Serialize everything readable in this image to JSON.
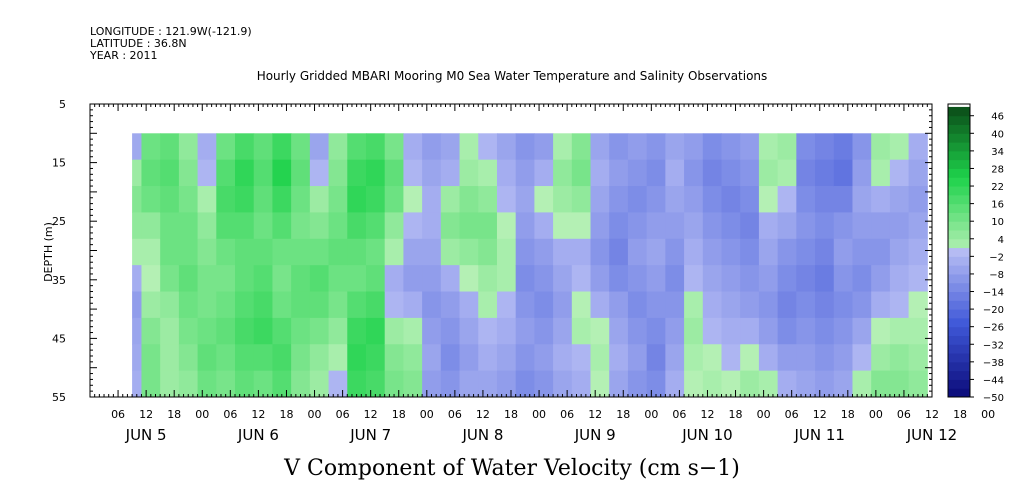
{
  "header": {
    "longitude": "LONGITUDE : 121.9W(-121.9)",
    "latitude": "LATITUDE : 36.8N",
    "year": "YEAR : 2011",
    "title": "Hourly Gridded MBARI Mooring M0 Sea Water Temperature and Salinity Observations"
  },
  "chart_data": {
    "type": "heatmap",
    "title": "Hourly Gridded MBARI Mooring M0 Sea Water Temperature and Salinity Observations",
    "caption": "V Component of Water Velocity (cm s−1)",
    "ylabel": "DEPTH (m)",
    "ylim": [
      5,
      55
    ],
    "y_inverted": true,
    "y_ticks": [
      5,
      15,
      25,
      35,
      45,
      55
    ],
    "data_depth_range": [
      10,
      55
    ],
    "x_unit": "hours since Jun 4 2011 00:00",
    "xlim": [
      0,
      180
    ],
    "data_time_range": [
      9,
      177
    ],
    "x_hour_ticks": [
      "06",
      "12",
      "18",
      "00",
      "06",
      "12",
      "18",
      "00",
      "06",
      "12",
      "18",
      "00",
      "06",
      "12",
      "18",
      "00",
      "06",
      "12",
      "18",
      "00",
      "06",
      "12",
      "18",
      "00",
      "06",
      "12",
      "18",
      "00",
      "06",
      "12",
      "18",
      "00"
    ],
    "x_date_labels": [
      "JUN  5",
      "JUN  6",
      "JUN  7",
      "JUN  8",
      "JUN  9",
      "JUN 10",
      "JUN 11",
      "JUN 12"
    ],
    "colorbar": {
      "levels": [
        46,
        40,
        34,
        28,
        22,
        16,
        10,
        4,
        -2,
        -8,
        -14,
        -20,
        -26,
        -32,
        -38,
        -44,
        -50
      ],
      "range": [
        -50,
        50
      ],
      "step": 3,
      "colors": {
        "neg_dark": "#0a0a78",
        "neg_mid": "#3f58d8",
        "neg_light": "#b7bdf4",
        "pos_light": "#b4f0b4",
        "pos_mid": "#1ed24b",
        "pos_dark": "#0a4616"
      }
    },
    "columns": [
      {
        "x": 9,
        "profile": [
          -5,
          4,
          8,
          6,
          2,
          -4,
          -8,
          -6,
          -5,
          -4
        ]
      },
      {
        "x": 13,
        "profile": [
          12,
          14,
          12,
          6,
          2,
          0,
          4,
          8,
          10,
          10
        ]
      },
      {
        "x": 17,
        "profile": [
          14,
          16,
          14,
          12,
          12,
          10,
          6,
          4,
          4,
          4
        ]
      },
      {
        "x": 21,
        "profile": [
          6,
          8,
          10,
          12,
          12,
          14,
          12,
          10,
          8,
          6
        ]
      },
      {
        "x": 25,
        "profile": [
          -4,
          -2,
          2,
          6,
          8,
          10,
          10,
          12,
          14,
          12
        ]
      },
      {
        "x": 29,
        "profile": [
          12,
          16,
          18,
          16,
          12,
          10,
          12,
          14,
          12,
          10
        ]
      },
      {
        "x": 33,
        "profile": [
          18,
          22,
          20,
          16,
          14,
          14,
          16,
          18,
          16,
          14
        ]
      },
      {
        "x": 37,
        "profile": [
          14,
          16,
          14,
          12,
          14,
          16,
          18,
          20,
          16,
          12
        ]
      },
      {
        "x": 41,
        "profile": [
          20,
          24,
          20,
          16,
          12,
          10,
          12,
          16,
          18,
          16
        ]
      },
      {
        "x": 45,
        "profile": [
          12,
          14,
          12,
          10,
          12,
          14,
          14,
          12,
          10,
          8
        ]
      },
      {
        "x": 49,
        "profile": [
          -6,
          -2,
          4,
          8,
          12,
          16,
          14,
          10,
          6,
          4
        ]
      },
      {
        "x": 53,
        "profile": [
          6,
          8,
          10,
          12,
          14,
          12,
          10,
          6,
          2,
          -2
        ]
      },
      {
        "x": 57,
        "profile": [
          16,
          20,
          22,
          18,
          14,
          12,
          16,
          20,
          22,
          20
        ]
      },
      {
        "x": 61,
        "profile": [
          18,
          22,
          20,
          16,
          12,
          14,
          18,
          22,
          20,
          18
        ]
      },
      {
        "x": 65,
        "profile": [
          10,
          14,
          12,
          6,
          2,
          -4,
          -2,
          4,
          8,
          10
        ]
      },
      {
        "x": 69,
        "profile": [
          -4,
          -2,
          0,
          -2,
          -6,
          -8,
          -4,
          2,
          6,
          8
        ]
      },
      {
        "x": 73,
        "profile": [
          -8,
          -6,
          -4,
          -4,
          -6,
          -8,
          -10,
          -8,
          -6,
          -8
        ]
      },
      {
        "x": 77,
        "profile": [
          -6,
          -4,
          4,
          8,
          4,
          -4,
          -8,
          -10,
          -12,
          -10
        ]
      },
      {
        "x": 81,
        "profile": [
          2,
          4,
          8,
          10,
          6,
          0,
          -4,
          -6,
          -8,
          -6
        ]
      },
      {
        "x": 85,
        "profile": [
          -2,
          2,
          6,
          10,
          8,
          4,
          2,
          -2,
          -4,
          -6
        ]
      },
      {
        "x": 89,
        "profile": [
          -6,
          -4,
          -2,
          0,
          2,
          2,
          -2,
          -4,
          -6,
          -8
        ]
      },
      {
        "x": 93,
        "profile": [
          -10,
          -8,
          -6,
          -8,
          -10,
          -12,
          -10,
          -8,
          -10,
          -12
        ]
      },
      {
        "x": 97,
        "profile": [
          -8,
          -4,
          0,
          -4,
          -8,
          -10,
          -12,
          -10,
          -8,
          -10
        ]
      },
      {
        "x": 101,
        "profile": [
          2,
          6,
          4,
          0,
          -4,
          -6,
          -8,
          -6,
          -4,
          -6
        ]
      },
      {
        "x": 105,
        "profile": [
          8,
          10,
          6,
          0,
          -4,
          -2,
          0,
          2,
          -2,
          -4
        ]
      },
      {
        "x": 109,
        "profile": [
          -6,
          -4,
          -6,
          -8,
          -10,
          -8,
          -4,
          0,
          2,
          0
        ]
      },
      {
        "x": 113,
        "profile": [
          -10,
          -8,
          -10,
          -12,
          -14,
          -12,
          -8,
          -6,
          -4,
          -6
        ]
      },
      {
        "x": 117,
        "profile": [
          -8,
          -10,
          -12,
          -10,
          -8,
          -10,
          -12,
          -10,
          -8,
          -10
        ]
      },
      {
        "x": 121,
        "profile": [
          -10,
          -12,
          -10,
          -8,
          -6,
          -8,
          -10,
          -12,
          -14,
          -12
        ]
      },
      {
        "x": 125,
        "profile": [
          -6,
          -4,
          -6,
          -8,
          -10,
          -12,
          -10,
          -8,
          -6,
          -4
        ]
      },
      {
        "x": 129,
        "profile": [
          -8,
          -10,
          -8,
          -6,
          -4,
          -2,
          2,
          4,
          2,
          0
        ]
      },
      {
        "x": 133,
        "profile": [
          -12,
          -14,
          -12,
          -10,
          -8,
          -6,
          -4,
          -2,
          0,
          2
        ]
      },
      {
        "x": 137,
        "profile": [
          -10,
          -12,
          -14,
          -12,
          -10,
          -8,
          -6,
          -4,
          -2,
          0
        ]
      },
      {
        "x": 141,
        "profile": [
          -8,
          -10,
          -12,
          -14,
          -12,
          -10,
          -8,
          -4,
          0,
          4
        ]
      },
      {
        "x": 145,
        "profile": [
          2,
          4,
          0,
          -4,
          -6,
          -8,
          -10,
          -8,
          -4,
          2
        ]
      },
      {
        "x": 149,
        "profile": [
          4,
          2,
          -2,
          -6,
          -10,
          -12,
          -14,
          -12,
          -8,
          -4
        ]
      },
      {
        "x": 153,
        "profile": [
          -12,
          -14,
          -12,
          -10,
          -12,
          -14,
          -12,
          -10,
          -8,
          -6
        ]
      },
      {
        "x": 157,
        "profile": [
          -14,
          -16,
          -14,
          -12,
          -14,
          -16,
          -14,
          -12,
          -10,
          -8
        ]
      },
      {
        "x": 161,
        "profile": [
          -16,
          -18,
          -14,
          -10,
          -8,
          -10,
          -12,
          -10,
          -8,
          -6
        ]
      },
      {
        "x": 165,
        "profile": [
          -10,
          -8,
          -6,
          -8,
          -10,
          -12,
          -10,
          -6,
          -2,
          2
        ]
      },
      {
        "x": 169,
        "profile": [
          4,
          2,
          -4,
          -8,
          -10,
          -8,
          -4,
          0,
          4,
          8
        ]
      },
      {
        "x": 173,
        "profile": [
          2,
          -2,
          -6,
          -8,
          -6,
          -4,
          -2,
          2,
          6,
          8
        ]
      },
      {
        "x": 177,
        "profile": [
          -4,
          -6,
          -8,
          -6,
          -4,
          -2,
          0,
          2,
          4,
          6
        ]
      }
    ]
  }
}
